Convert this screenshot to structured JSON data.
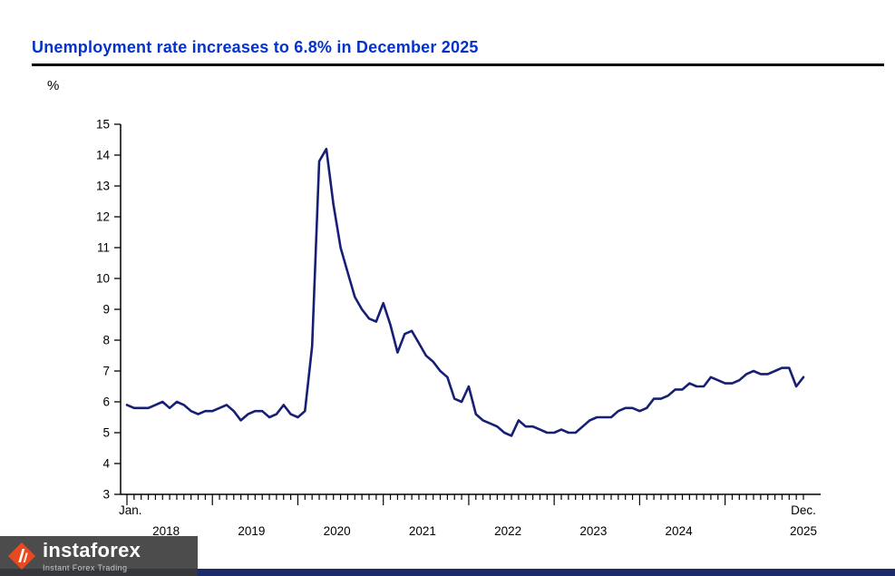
{
  "header": {
    "title": "Unemployment rate increases to 6.8% in December 2025"
  },
  "colors": {
    "title": "#0433c9",
    "axis": "#000000",
    "line": "#161f73",
    "bottom_bar": "#1c2a69"
  },
  "chart_data": {
    "type": "line",
    "title": "Unemployment rate increases to 6.8% in December 2025",
    "xlabel": "",
    "ylabel": "%",
    "ylim": [
      3,
      15
    ],
    "ytick_step": 1,
    "grid": false,
    "legend_position": "none",
    "x_start_label": "Jan.",
    "x_end_label": "Dec.",
    "months_per_year": 12,
    "year_labels": [
      "2018",
      "2019",
      "2020",
      "2021",
      "2022",
      "2023",
      "2024",
      "2025"
    ],
    "series": [
      {
        "name": "Unemployment rate (%)",
        "color": "#161f73",
        "values": [
          5.9,
          5.8,
          5.8,
          5.8,
          5.9,
          6.0,
          5.8,
          6.0,
          5.9,
          5.7,
          5.6,
          5.7,
          5.7,
          5.8,
          5.9,
          5.7,
          5.4,
          5.6,
          5.7,
          5.7,
          5.5,
          5.6,
          5.9,
          5.6,
          5.5,
          5.7,
          7.8,
          13.8,
          14.2,
          12.4,
          11.0,
          10.2,
          9.4,
          9.0,
          8.7,
          8.6,
          9.2,
          8.5,
          7.6,
          8.2,
          8.3,
          7.9,
          7.5,
          7.3,
          7.0,
          6.8,
          6.1,
          6.0,
          6.5,
          5.6,
          5.4,
          5.3,
          5.2,
          5.0,
          4.9,
          5.4,
          5.2,
          5.2,
          5.1,
          5.0,
          5.0,
          5.1,
          5.0,
          5.0,
          5.2,
          5.4,
          5.5,
          5.5,
          5.5,
          5.7,
          5.8,
          5.8,
          5.7,
          5.8,
          6.1,
          6.1,
          6.2,
          6.4,
          6.4,
          6.6,
          6.5,
          6.5,
          6.8,
          6.7,
          6.6,
          6.6,
          6.7,
          6.9,
          7.0,
          6.9,
          6.9,
          7.0,
          7.1,
          7.1,
          6.5,
          6.8
        ]
      }
    ]
  },
  "branding": {
    "name": "instaforex",
    "tagline": "Instant Forex Trading",
    "logo_color": "#e8491f",
    "bar_color": "#1c2a69"
  }
}
